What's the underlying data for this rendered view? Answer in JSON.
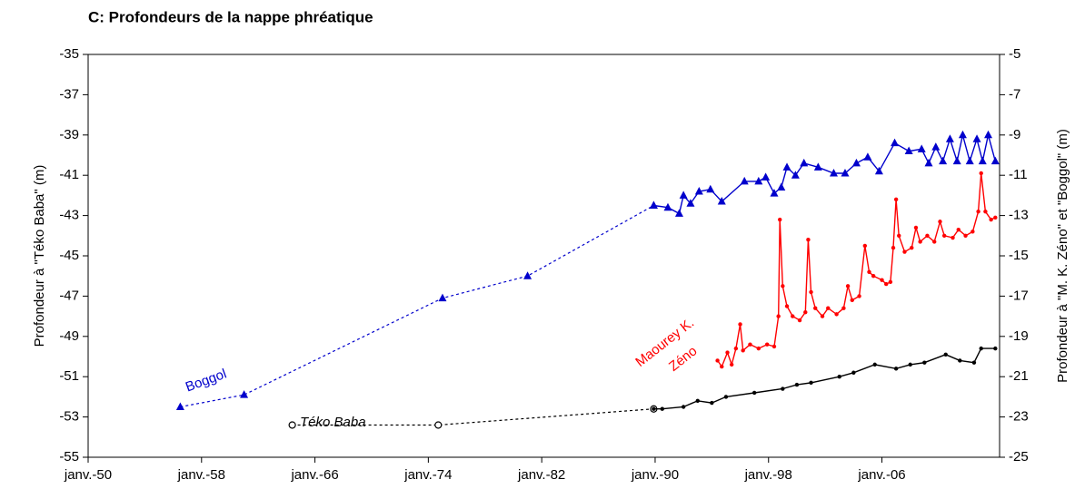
{
  "chart_data": {
    "type": "line",
    "title": "C: Profondeurs de la nappe phréatique",
    "ylabel": "Profondeur à \"Téko Baba\" (m)",
    "y2label": "Profondeur à \"M. K. Zéno\" et \"Boggol\" (m)",
    "xlim": [
      1950,
      2014.3
    ],
    "xticks": [
      {
        "value": 1950,
        "label": "janv.-50"
      },
      {
        "value": 1958,
        "label": "janv.-58"
      },
      {
        "value": 1966,
        "label": "janv.-66"
      },
      {
        "value": 1974,
        "label": "janv.-74"
      },
      {
        "value": 1982,
        "label": "janv.-82"
      },
      {
        "value": 1990,
        "label": "janv.-90"
      },
      {
        "value": 1998,
        "label": "janv.-98"
      },
      {
        "value": 2006,
        "label": "janv.-06"
      }
    ],
    "ylim": [
      -55,
      -35
    ],
    "yticks": [
      -35,
      -37,
      -39,
      -41,
      -43,
      -45,
      -47,
      -49,
      -51,
      -53,
      -55
    ],
    "y2lim": [
      -25,
      -5
    ],
    "y2ticks": [
      -5,
      -7,
      -9,
      -11,
      -13,
      -15,
      -17,
      -19,
      -21,
      -23,
      -25
    ],
    "annotations": [
      {
        "text": "Boggol",
        "color": "#0000cc"
      },
      {
        "text": "Téko Baba",
        "color": "#000000"
      },
      {
        "text": "Maourey K.",
        "color": "#ff0000"
      },
      {
        "text": "Zéno",
        "color": "#ff0000"
      }
    ],
    "series": [
      {
        "color": "#0000cc",
        "axis": "y2",
        "dashed": true,
        "marker": "triangle",
        "x": [
          1956.5,
          1961,
          1975,
          1981,
          1989.9
        ],
        "values": [
          -22.5,
          -21.9,
          -17.1,
          -16.0,
          -12.5
        ]
      },
      {
        "color": "#0000cc",
        "axis": "y2",
        "dashed": false,
        "marker": "triangle",
        "x": [
          1989.9,
          1990.9,
          1991.7,
          1992.0,
          1992.5,
          1993.1,
          1993.9,
          1994.7,
          1996.3,
          1997.3,
          1997.8,
          1998.4,
          1998.9,
          1999.3,
          1999.9,
          2000.5,
          2001.5,
          2002.6,
          2003.4,
          2004.2,
          2005.0,
          2005.8,
          2006.9,
          2007.9,
          2008.8,
          2009.3,
          2009.8,
          2010.3,
          2010.8,
          2011.3,
          2011.7,
          2012.2,
          2012.7,
          2013.1,
          2013.5,
          2014.0
        ],
        "values": [
          -12.5,
          -12.6,
          -12.9,
          -12.0,
          -12.4,
          -11.8,
          -11.7,
          -12.3,
          -11.3,
          -11.3,
          -11.1,
          -11.9,
          -11.6,
          -10.6,
          -11.0,
          -10.4,
          -10.6,
          -10.9,
          -10.9,
          -10.4,
          -10.1,
          -10.8,
          -9.4,
          -9.8,
          -9.7,
          -10.4,
          -9.6,
          -10.3,
          -9.2,
          -10.3,
          -9.0,
          -10.3,
          -9.2,
          -10.3,
          -9.0,
          -10.3
        ]
      },
      {
        "color": "#000000",
        "axis": "y",
        "dashed": true,
        "marker": "open-circle",
        "x": [
          1964.4,
          1974.7,
          1989.9
        ],
        "values": [
          -53.4,
          -53.4,
          -52.6
        ]
      },
      {
        "color": "#000000",
        "axis": "y",
        "dashed": false,
        "marker": "circle",
        "x": [
          1989.9,
          1990.5,
          1992,
          1993,
          1994,
          1995,
          1997,
          1999,
          2000,
          2001,
          2003,
          2004,
          2005.5,
          2007,
          2008,
          2009,
          2010.5,
          2011.5,
          2012.5,
          2013,
          2014
        ],
        "values": [
          -52.6,
          -52.6,
          -52.5,
          -52.2,
          -52.3,
          -52.0,
          -51.8,
          -51.6,
          -51.4,
          -51.3,
          -51.0,
          -50.8,
          -50.4,
          -50.6,
          -50.4,
          -50.3,
          -49.9,
          -50.2,
          -50.3,
          -49.6,
          -49.6
        ]
      },
      {
        "color": "#ff0000",
        "axis": "y2",
        "dashed": false,
        "marker": "circle",
        "x": [
          1994.4,
          1994.7,
          1995.1,
          1995.4,
          1995.7,
          1996.0,
          1996.2,
          1996.7,
          1997.3,
          1997.9,
          1998.4,
          1998.7,
          1998.8,
          1999.0,
          1999.3,
          1999.7,
          2000.2,
          2000.6,
          2000.8,
          2001.0,
          2001.3,
          2001.8,
          2002.2,
          2002.8,
          2003.3,
          2003.6,
          2003.9,
          2004.4,
          2004.8,
          2005.1,
          2005.4,
          2006.0,
          2006.3,
          2006.6,
          2006.8,
          2007.0,
          2007.2,
          2007.6,
          2008.1,
          2008.4,
          2008.7,
          2009.2,
          2009.7,
          2010.1,
          2010.4,
          2011.0,
          2011.4,
          2011.9,
          2012.4,
          2012.8,
          2013.0,
          2013.3,
          2013.7,
          2014.0
        ],
        "values": [
          -20.2,
          -20.5,
          -19.8,
          -20.4,
          -19.6,
          -18.4,
          -19.7,
          -19.4,
          -19.6,
          -19.4,
          -19.5,
          -18.0,
          -13.2,
          -16.5,
          -17.5,
          -18.0,
          -18.2,
          -17.8,
          -14.2,
          -16.8,
          -17.6,
          -18.0,
          -17.6,
          -17.9,
          -17.6,
          -16.5,
          -17.2,
          -17.0,
          -14.5,
          -15.8,
          -16.0,
          -16.2,
          -16.4,
          -16.3,
          -14.6,
          -12.2,
          -14.0,
          -14.8,
          -14.6,
          -13.6,
          -14.3,
          -14.0,
          -14.3,
          -13.3,
          -14.0,
          -14.1,
          -13.7,
          -14.0,
          -13.8,
          -12.8,
          -10.9,
          -12.8,
          -13.2,
          -13.1
        ]
      }
    ]
  }
}
